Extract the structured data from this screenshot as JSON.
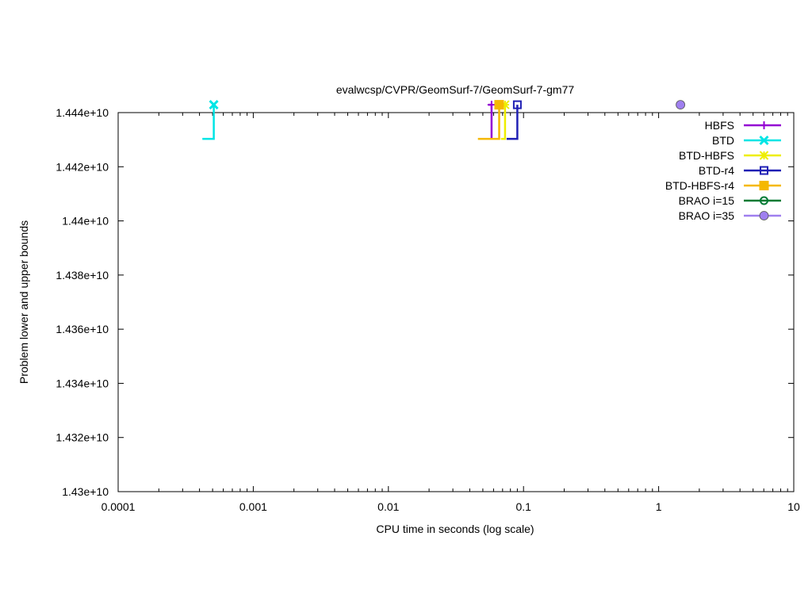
{
  "chart_data": {
    "type": "line",
    "title": "evalwcsp/CVPR/GeomSurf-7/GeomSurf-7-gm77",
    "xlabel": "CPU time in seconds (log scale)",
    "ylabel": "Problem lower and upper bounds",
    "xscale": "log",
    "xlim": [
      0.0001,
      10
    ],
    "ylim": [
      14300000000,
      14440000000
    ],
    "x_ticks": [
      "0.0001",
      "0.001",
      "0.01",
      "0.1",
      "1",
      "10"
    ],
    "y_ticks": [
      "1.43e+10",
      "1.432e+10",
      "1.434e+10",
      "1.436e+10",
      "1.438e+10",
      "1.44e+10",
      "1.442e+10",
      "1.444e+10"
    ],
    "grid": false,
    "legend_position": "top-right",
    "series": [
      {
        "name": "HBFS",
        "color": "#9400d3",
        "marker": "plus",
        "x": [
          0.058,
          0.058,
          0.058
        ],
        "y": [
          14430300000,
          14442900000,
          14442900000
        ],
        "lead_in": [
          0.055,
          14442900000
        ]
      },
      {
        "name": "BTD",
        "color": "#00e5e5",
        "marker": "cross",
        "x": [
          0.00042,
          0.00051,
          0.00051
        ],
        "y": [
          14430300000,
          14430300000,
          14442900000
        ]
      },
      {
        "name": "BTD-HBFS",
        "color": "#eeee00",
        "marker": "star",
        "x": [
          0.068,
          0.073,
          0.073
        ],
        "y": [
          14430300000,
          14430300000,
          14442900000
        ]
      },
      {
        "name": "BTD-r4",
        "color": "#1f1fb4",
        "marker": "square-open",
        "x": [
          0.075,
          0.09,
          0.09
        ],
        "y": [
          14430300000,
          14430300000,
          14442900000
        ]
      },
      {
        "name": "BTD-HBFS-r4",
        "color": "#f5b800",
        "marker": "square-filled",
        "x": [
          0.046,
          0.066,
          0.066
        ],
        "y": [
          14430300000,
          14430300000,
          14442900000
        ]
      },
      {
        "name": "BRAO i=15",
        "color": "#007a33",
        "marker": "circle-open",
        "x": [],
        "y": []
      },
      {
        "name": "BRAO i=35",
        "color": "#9f7fef",
        "marker": "circle-filled",
        "x": [],
        "y": []
      }
    ],
    "extra_points": [
      {
        "series": "BRAO i=35",
        "x": 1.45,
        "y": 14442900000
      }
    ]
  }
}
